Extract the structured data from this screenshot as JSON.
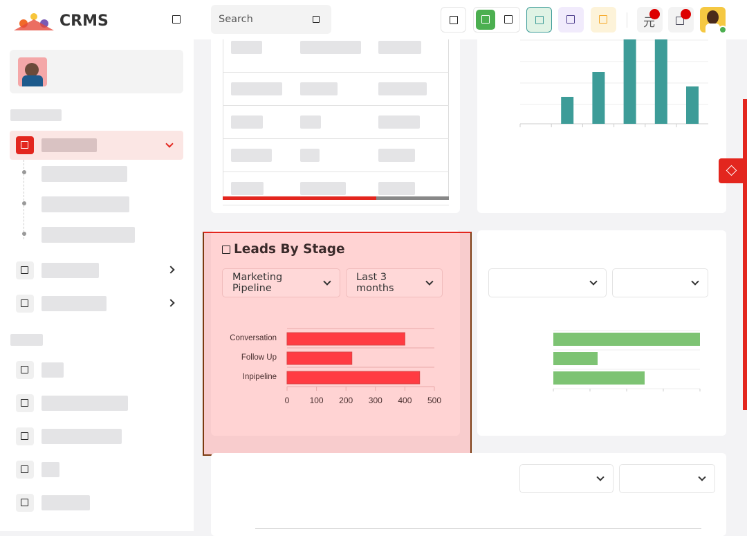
{
  "app": {
    "name": "CRMS"
  },
  "header": {
    "search_placeholder": "Search",
    "lang_glyph": "元"
  },
  "colors": {
    "accent": "#e3261e",
    "teal": "#3d9c98",
    "green": "#7dc373",
    "bar_red": "#ff3b42"
  },
  "leads_card": {
    "title": "Leads By Stage",
    "pipeline_select": "Marketing Pipeline",
    "period_select": "Last 3 months"
  },
  "chart_data": {
    "type": "bar",
    "orientation": "horizontal",
    "categories": [
      "Conversation",
      "Follow Up",
      "Inpipeline"
    ],
    "values": [
      400,
      220,
      450
    ],
    "xlim": [
      0,
      500
    ],
    "xticks": [
      "0",
      "100",
      "200",
      "300",
      "400",
      "500"
    ],
    "grid": true
  }
}
